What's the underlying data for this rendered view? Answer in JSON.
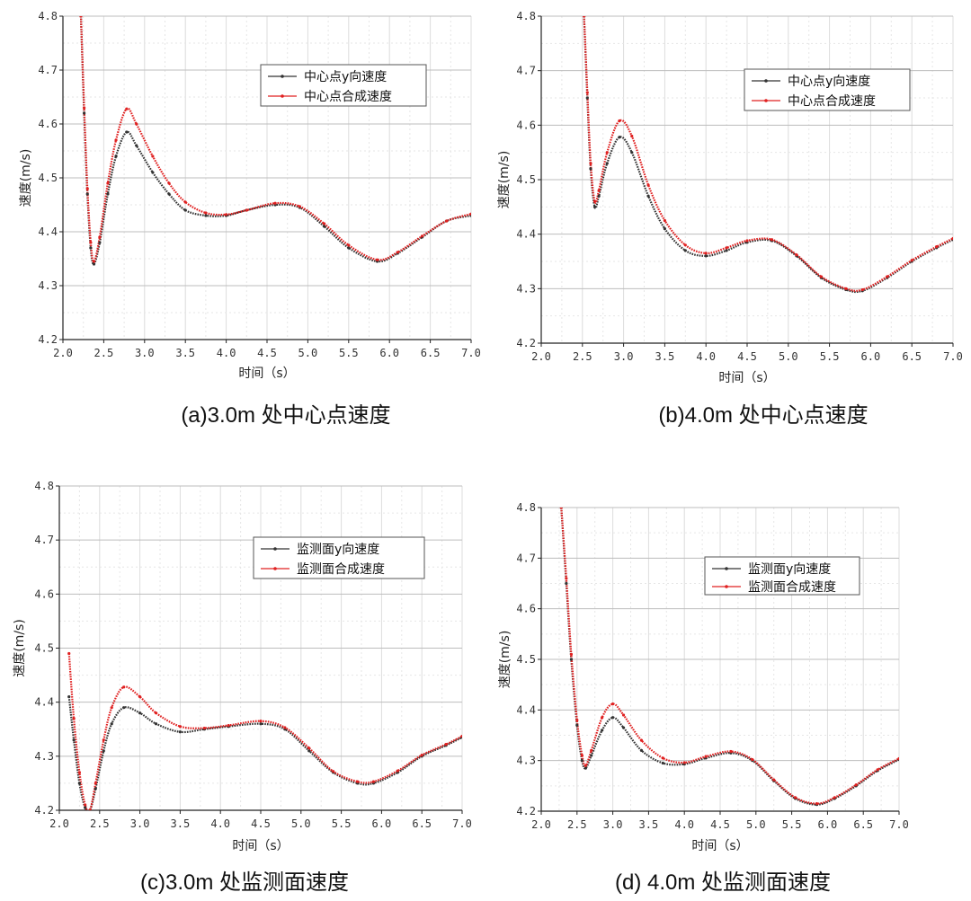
{
  "chart_data": [
    {
      "type": "line",
      "caption": "(a)3.0m 处中心点速度",
      "xlabel": "时间（s）",
      "ylabel": "速度(m/s)",
      "xlim": [
        2.0,
        7.0
      ],
      "ylim": [
        4.2,
        4.8
      ],
      "xticks": [
        "2.0",
        "2.5",
        "3.0",
        "3.5",
        "4.0",
        "4.5",
        "5.0",
        "5.5",
        "6.0",
        "6.5",
        "7.0"
      ],
      "yticks": [
        "4.2",
        "4.3",
        "4.4",
        "4.5",
        "4.6",
        "4.7",
        "4.8"
      ],
      "grid": true,
      "legend": "top-right",
      "series": [
        {
          "name": "中心点y向速度",
          "color": "#333333",
          "points": [
            [
              2.22,
              4.8
            ],
            [
              2.26,
              4.62
            ],
            [
              2.3,
              4.47
            ],
            [
              2.34,
              4.37
            ],
            [
              2.38,
              4.34
            ],
            [
              2.45,
              4.38
            ],
            [
              2.55,
              4.47
            ],
            [
              2.65,
              4.54
            ],
            [
              2.78,
              4.585
            ],
            [
              2.9,
              4.56
            ],
            [
              3.1,
              4.51
            ],
            [
              3.3,
              4.47
            ],
            [
              3.5,
              4.44
            ],
            [
              3.75,
              4.43
            ],
            [
              4.0,
              4.43
            ],
            [
              4.25,
              4.44
            ],
            [
              4.6,
              4.45
            ],
            [
              4.9,
              4.445
            ],
            [
              5.2,
              4.41
            ],
            [
              5.5,
              4.37
            ],
            [
              5.85,
              4.345
            ],
            [
              6.1,
              4.36
            ],
            [
              6.4,
              4.39
            ],
            [
              6.7,
              4.42
            ],
            [
              7.0,
              4.43
            ]
          ]
        },
        {
          "name": "中心点合成速度",
          "color": "#e02020",
          "points": [
            [
              2.22,
              4.8
            ],
            [
              2.26,
              4.63
            ],
            [
              2.3,
              4.48
            ],
            [
              2.34,
              4.38
            ],
            [
              2.38,
              4.345
            ],
            [
              2.45,
              4.39
            ],
            [
              2.55,
              4.49
            ],
            [
              2.65,
              4.57
            ],
            [
              2.78,
              4.628
            ],
            [
              2.9,
              4.6
            ],
            [
              3.1,
              4.54
            ],
            [
              3.3,
              4.49
            ],
            [
              3.5,
              4.455
            ],
            [
              3.75,
              4.435
            ],
            [
              4.0,
              4.432
            ],
            [
              4.25,
              4.44
            ],
            [
              4.6,
              4.453
            ],
            [
              4.9,
              4.447
            ],
            [
              5.2,
              4.415
            ],
            [
              5.5,
              4.375
            ],
            [
              5.85,
              4.348
            ],
            [
              6.1,
              4.362
            ],
            [
              6.4,
              4.392
            ],
            [
              6.7,
              4.42
            ],
            [
              7.0,
              4.433
            ]
          ]
        }
      ]
    },
    {
      "type": "line",
      "caption": "(b)4.0m 处中心点速度",
      "xlabel": "时间（s）",
      "ylabel": "速度(m/s)",
      "xlim": [
        2.0,
        7.0
      ],
      "ylim": [
        4.2,
        4.8
      ],
      "xticks": [
        "2.0",
        "2.5",
        "3.0",
        "3.5",
        "4.0",
        "4.5",
        "5.0",
        "5.5",
        "6.0",
        "6.5",
        "7.0"
      ],
      "yticks": [
        "4.2",
        "4.3",
        "4.4",
        "4.5",
        "4.6",
        "4.7",
        "4.8"
      ],
      "grid": true,
      "legend": "top-right",
      "series": [
        {
          "name": "中心点y向速度",
          "color": "#333333",
          "points": [
            [
              2.52,
              4.8
            ],
            [
              2.56,
              4.65
            ],
            [
              2.6,
              4.52
            ],
            [
              2.65,
              4.45
            ],
            [
              2.7,
              4.47
            ],
            [
              2.8,
              4.53
            ],
            [
              2.95,
              4.578
            ],
            [
              3.1,
              4.55
            ],
            [
              3.3,
              4.47
            ],
            [
              3.5,
              4.41
            ],
            [
              3.75,
              4.37
            ],
            [
              4.0,
              4.36
            ],
            [
              4.25,
              4.37
            ],
            [
              4.5,
              4.385
            ],
            [
              4.8,
              4.388
            ],
            [
              5.1,
              4.36
            ],
            [
              5.4,
              4.32
            ],
            [
              5.7,
              4.298
            ],
            [
              5.9,
              4.296
            ],
            [
              6.2,
              4.32
            ],
            [
              6.5,
              4.35
            ],
            [
              6.8,
              4.375
            ],
            [
              7.0,
              4.39
            ]
          ]
        },
        {
          "name": "中心点合成速度",
          "color": "#e02020",
          "points": [
            [
              2.52,
              4.8
            ],
            [
              2.56,
              4.66
            ],
            [
              2.6,
              4.53
            ],
            [
              2.65,
              4.46
            ],
            [
              2.7,
              4.48
            ],
            [
              2.8,
              4.55
            ],
            [
              2.95,
              4.608
            ],
            [
              3.1,
              4.58
            ],
            [
              3.3,
              4.49
            ],
            [
              3.5,
              4.425
            ],
            [
              3.75,
              4.38
            ],
            [
              4.0,
              4.365
            ],
            [
              4.25,
              4.375
            ],
            [
              4.5,
              4.388
            ],
            [
              4.8,
              4.39
            ],
            [
              5.1,
              4.362
            ],
            [
              5.4,
              4.322
            ],
            [
              5.7,
              4.3
            ],
            [
              5.9,
              4.298
            ],
            [
              6.2,
              4.322
            ],
            [
              6.5,
              4.352
            ],
            [
              6.8,
              4.377
            ],
            [
              7.0,
              4.392
            ]
          ]
        }
      ]
    },
    {
      "type": "line",
      "caption": "(c)3.0m 处监测面速度",
      "xlabel": "时间（s）",
      "ylabel": "速度(m/s)",
      "xlim": [
        2.0,
        7.0
      ],
      "ylim": [
        4.2,
        4.8
      ],
      "xticks": [
        "2.0",
        "2.5",
        "3.0",
        "3.5",
        "4.0",
        "4.5",
        "5.0",
        "5.5",
        "6.0",
        "6.5",
        "7.0"
      ],
      "yticks": [
        "4.2",
        "4.3",
        "4.4",
        "4.5",
        "4.6",
        "4.7",
        "4.8"
      ],
      "grid": true,
      "legend": "top-right",
      "series": [
        {
          "name": "监测面y向速度",
          "color": "#333333",
          "points": [
            [
              2.12,
              4.41
            ],
            [
              2.18,
              4.33
            ],
            [
              2.25,
              4.25
            ],
            [
              2.32,
              4.205
            ],
            [
              2.38,
              4.2
            ],
            [
              2.45,
              4.24
            ],
            [
              2.55,
              4.31
            ],
            [
              2.65,
              4.36
            ],
            [
              2.8,
              4.39
            ],
            [
              3.0,
              4.38
            ],
            [
              3.2,
              4.36
            ],
            [
              3.5,
              4.345
            ],
            [
              3.8,
              4.35
            ],
            [
              4.1,
              4.355
            ],
            [
              4.5,
              4.36
            ],
            [
              4.8,
              4.35
            ],
            [
              5.1,
              4.31
            ],
            [
              5.4,
              4.27
            ],
            [
              5.7,
              4.25
            ],
            [
              5.9,
              4.25
            ],
            [
              6.2,
              4.27
            ],
            [
              6.5,
              4.3
            ],
            [
              6.8,
              4.32
            ],
            [
              7.0,
              4.335
            ]
          ]
        },
        {
          "name": "监测面合成速度",
          "color": "#e02020",
          "points": [
            [
              2.12,
              4.49
            ],
            [
              2.18,
              4.37
            ],
            [
              2.25,
              4.27
            ],
            [
              2.32,
              4.21
            ],
            [
              2.38,
              4.2
            ],
            [
              2.45,
              4.25
            ],
            [
              2.55,
              4.33
            ],
            [
              2.65,
              4.39
            ],
            [
              2.8,
              4.428
            ],
            [
              3.0,
              4.41
            ],
            [
              3.2,
              4.38
            ],
            [
              3.5,
              4.355
            ],
            [
              3.8,
              4.352
            ],
            [
              4.1,
              4.357
            ],
            [
              4.5,
              4.365
            ],
            [
              4.8,
              4.353
            ],
            [
              5.1,
              4.315
            ],
            [
              5.4,
              4.272
            ],
            [
              5.7,
              4.253
            ],
            [
              5.9,
              4.253
            ],
            [
              6.2,
              4.273
            ],
            [
              6.5,
              4.302
            ],
            [
              6.8,
              4.322
            ],
            [
              7.0,
              4.337
            ]
          ]
        }
      ]
    },
    {
      "type": "line",
      "caption": "(d) 4.0m 处监测面速度",
      "xlabel": "时间（s）",
      "ylabel": "速度(m/s)",
      "xlim": [
        2.0,
        7.0
      ],
      "ylim": [
        4.2,
        4.8
      ],
      "xticks": [
        "2.0",
        "2.5",
        "3.0",
        "3.5",
        "4.0",
        "4.5",
        "5.0",
        "5.5",
        "6.0",
        "6.5",
        "7.0"
      ],
      "yticks": [
        "4.2",
        "4.3",
        "4.4",
        "4.5",
        "4.6",
        "4.7",
        "4.8"
      ],
      "grid": true,
      "legend": "top-right",
      "series": [
        {
          "name": "监测面y向速度",
          "color": "#333333",
          "points": [
            [
              2.28,
              4.8
            ],
            [
              2.35,
              4.65
            ],
            [
              2.42,
              4.5
            ],
            [
              2.5,
              4.37
            ],
            [
              2.57,
              4.3
            ],
            [
              2.62,
              4.285
            ],
            [
              2.7,
              4.31
            ],
            [
              2.85,
              4.36
            ],
            [
              3.0,
              4.385
            ],
            [
              3.15,
              4.365
            ],
            [
              3.4,
              4.32
            ],
            [
              3.7,
              4.295
            ],
            [
              4.0,
              4.293
            ],
            [
              4.3,
              4.305
            ],
            [
              4.65,
              4.315
            ],
            [
              4.95,
              4.3
            ],
            [
              5.25,
              4.26
            ],
            [
              5.55,
              4.225
            ],
            [
              5.85,
              4.213
            ],
            [
              6.1,
              4.225
            ],
            [
              6.4,
              4.25
            ],
            [
              6.7,
              4.28
            ],
            [
              7.0,
              4.302
            ]
          ]
        },
        {
          "name": "监测面合成速度",
          "color": "#e02020",
          "points": [
            [
              2.28,
              4.8
            ],
            [
              2.35,
              4.66
            ],
            [
              2.42,
              4.51
            ],
            [
              2.5,
              4.38
            ],
            [
              2.57,
              4.31
            ],
            [
              2.62,
              4.29
            ],
            [
              2.7,
              4.32
            ],
            [
              2.85,
              4.385
            ],
            [
              3.0,
              4.412
            ],
            [
              3.15,
              4.39
            ],
            [
              3.4,
              4.34
            ],
            [
              3.7,
              4.305
            ],
            [
              4.0,
              4.296
            ],
            [
              4.3,
              4.308
            ],
            [
              4.65,
              4.318
            ],
            [
              4.95,
              4.302
            ],
            [
              5.25,
              4.262
            ],
            [
              5.55,
              4.227
            ],
            [
              5.85,
              4.215
            ],
            [
              6.1,
              4.227
            ],
            [
              6.4,
              4.252
            ],
            [
              6.7,
              4.282
            ],
            [
              7.0,
              4.304
            ]
          ]
        }
      ]
    }
  ]
}
